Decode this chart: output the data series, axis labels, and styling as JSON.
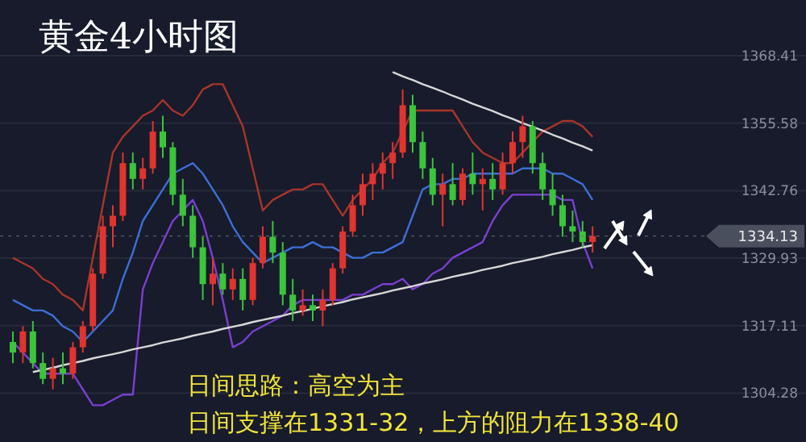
{
  "chart_data": {
    "type": "candlestick",
    "title": "黄金4小时图",
    "annotations": [
      "日间思路：高空为主",
      "日间支撑在1331-32，上方的阻力在1338-40"
    ],
    "categories": [
      null,
      null,
      null,
      null,
      null,
      null,
      null,
      null,
      null,
      null,
      null,
      null,
      null,
      null,
      null,
      null,
      null,
      null,
      null,
      null,
      null,
      null,
      null,
      null,
      null,
      null,
      null,
      null,
      null,
      null,
      null,
      null,
      null,
      null,
      null,
      null,
      null,
      null,
      null,
      null,
      null,
      null,
      null,
      null,
      null,
      null,
      null,
      null,
      null,
      null,
      null,
      null,
      null,
      null,
      null,
      null,
      null,
      null,
      null
    ],
    "ohlc": [
      [
        1314,
        1316,
        1310,
        1312
      ],
      [
        1312,
        1317,
        1310,
        1316
      ],
      [
        1316,
        1318,
        1309,
        1310
      ],
      [
        1310,
        1312,
        1306,
        1307
      ],
      [
        1307,
        1311,
        1305,
        1309
      ],
      [
        1309,
        1312,
        1306,
        1308
      ],
      [
        1308,
        1314,
        1307,
        1313
      ],
      [
        1313,
        1318,
        1312,
        1317
      ],
      [
        1317,
        1328,
        1316,
        1327
      ],
      [
        1327,
        1338,
        1326,
        1336
      ],
      [
        1336,
        1340,
        1332,
        1338
      ],
      [
        1338,
        1350,
        1337,
        1348
      ],
      [
        1348,
        1350,
        1343,
        1345
      ],
      [
        1345,
        1349,
        1343,
        1347
      ],
      [
        1347,
        1356,
        1346,
        1354
      ],
      [
        1354,
        1357,
        1349,
        1351
      ],
      [
        1351,
        1352,
        1340,
        1342
      ],
      [
        1342,
        1345,
        1336,
        1338
      ],
      [
        1338,
        1340,
        1330,
        1332
      ],
      [
        1332,
        1334,
        1322,
        1325
      ],
      [
        1325,
        1330,
        1321,
        1327
      ],
      [
        1327,
        1329,
        1323,
        1324
      ],
      [
        1324,
        1328,
        1322,
        1326
      ],
      [
        1326,
        1328,
        1320,
        1322
      ],
      [
        1322,
        1330,
        1321,
        1329
      ],
      [
        1329,
        1336,
        1328,
        1334
      ],
      [
        1334,
        1337,
        1329,
        1331
      ],
      [
        1331,
        1333,
        1321,
        1323
      ],
      [
        1323,
        1326,
        1318,
        1320
      ],
      [
        1320,
        1324,
        1319,
        1321
      ],
      [
        1321,
        1323,
        1318,
        1320
      ],
      [
        1320,
        1324,
        1317,
        1322
      ],
      [
        1322,
        1329,
        1321,
        1328
      ],
      [
        1328,
        1336,
        1327,
        1335
      ],
      [
        1335,
        1342,
        1334,
        1340
      ],
      [
        1340,
        1346,
        1338,
        1344
      ],
      [
        1344,
        1348,
        1341,
        1346
      ],
      [
        1346,
        1350,
        1343,
        1348
      ],
      [
        1348,
        1352,
        1345,
        1350
      ],
      [
        1350,
        1362,
        1349,
        1359
      ],
      [
        1359,
        1361,
        1350,
        1352
      ],
      [
        1352,
        1354,
        1345,
        1347
      ],
      [
        1347,
        1349,
        1340,
        1342
      ],
      [
        1342,
        1346,
        1336,
        1344
      ],
      [
        1344,
        1348,
        1340,
        1341
      ],
      [
        1341,
        1347,
        1340,
        1346
      ],
      [
        1346,
        1350,
        1342,
        1344
      ],
      [
        1344,
        1347,
        1339,
        1345
      ],
      [
        1345,
        1348,
        1341,
        1343
      ],
      [
        1343,
        1350,
        1342,
        1348
      ],
      [
        1348,
        1354,
        1346,
        1352
      ],
      [
        1352,
        1357,
        1349,
        1355
      ],
      [
        1355,
        1356,
        1346,
        1348
      ],
      [
        1348,
        1350,
        1341,
        1343
      ],
      [
        1343,
        1346,
        1338,
        1340
      ],
      [
        1340,
        1342,
        1334,
        1336
      ],
      [
        1336,
        1339,
        1333,
        1335
      ],
      [
        1335,
        1337,
        1332,
        1333
      ],
      [
        1333,
        1336,
        1331,
        1334.13
      ]
    ],
    "colors": [
      "#3cc43c",
      "#e0342f",
      "#3cc43c",
      "#3cc43c",
      "#e0342f",
      "#3cc43c",
      "#e0342f",
      "#e0342f",
      "#e0342f",
      "#e0342f",
      "#e0342f",
      "#e0342f",
      "#3cc43c",
      "#e0342f",
      "#e0342f",
      "#3cc43c",
      "#3cc43c",
      "#3cc43c",
      "#3cc43c",
      "#3cc43c",
      "#e0342f",
      "#3cc43c",
      "#e0342f",
      "#3cc43c",
      "#e0342f",
      "#e0342f",
      "#3cc43c",
      "#3cc43c",
      "#3cc43c",
      "#e0342f",
      "#3cc43c",
      "#e0342f",
      "#e0342f",
      "#e0342f",
      "#e0342f",
      "#e0342f",
      "#e0342f",
      "#e0342f",
      "#e0342f",
      "#e0342f",
      "#3cc43c",
      "#3cc43c",
      "#3cc43c",
      "#e0342f",
      "#3cc43c",
      "#e0342f",
      "#3cc43c",
      "#e0342f",
      "#3cc43c",
      "#e0342f",
      "#e0342f",
      "#e0342f",
      "#3cc43c",
      "#3cc43c",
      "#3cc43c",
      "#3cc43c",
      "#3cc43c",
      "#3cc43c",
      "#e0342f"
    ],
    "series": [
      {
        "type": "line",
        "color": "#a8352b",
        "values": [
          1330,
          1329,
          1328,
          1326,
          1325,
          1323,
          1322,
          1320,
          1330,
          1340,
          1350,
          1353,
          1355,
          1357,
          1358,
          1360,
          1358,
          1357,
          1359,
          1362,
          1363,
          1363,
          1359,
          1355,
          1347,
          1339,
          1341,
          1342,
          1343,
          1343,
          1344,
          1344,
          1341,
          1338,
          1341,
          1343,
          1345,
          1348,
          1350,
          1354,
          1358,
          1358,
          1358,
          1358,
          1358,
          1355,
          1352,
          1350,
          1349,
          1348,
          1348,
          1350,
          1352,
          1354,
          1355,
          1356,
          1356,
          1355,
          1353
        ]
      },
      {
        "type": "line",
        "color": "#3d6fd6",
        "values": [
          1322,
          1321,
          1320,
          1320,
          1319,
          1317,
          1316,
          1314,
          1316,
          1318,
          1320,
          1326,
          1331,
          1337,
          1340,
          1343,
          1346,
          1347,
          1348,
          1346,
          1343,
          1340,
          1336,
          1333,
          1331,
          1329,
          1330,
          1331,
          1332,
          1332,
          1333,
          1332,
          1332,
          1331,
          1330,
          1330,
          1331,
          1331,
          1332,
          1333,
          1338,
          1343,
          1344,
          1344,
          1345,
          1345,
          1346,
          1346,
          1346,
          1346,
          1346,
          1347,
          1347,
          1347,
          1346,
          1346,
          1345,
          1344,
          1341
        ]
      },
      {
        "type": "line",
        "color": "#7b3fd0",
        "values": [
          1314,
          1312,
          1310,
          1308,
          1308,
          1308,
          1308,
          1305,
          1302,
          1302,
          1303,
          1304,
          1304,
          1324,
          1329,
          1333,
          1337,
          1339,
          1341,
          1337,
          1330,
          1322,
          1313,
          1314,
          1316,
          1317,
          1318,
          1319,
          1321,
          1322,
          1322,
          1322,
          1322,
          1322,
          1323,
          1323,
          1324,
          1325,
          1325,
          1326,
          1324,
          1325,
          1327,
          1328,
          1330,
          1331,
          1332,
          1333,
          1337,
          1340,
          1342,
          1342,
          1342,
          1342,
          1342,
          1341,
          1341,
          1333,
          1328
        ]
      },
      {
        "type": "line",
        "color": "#d8d8d8",
        "values": [
          null,
          null,
          1308.3,
          1308.7,
          1309.1,
          1309.6,
          1310.0,
          1310.4,
          1310.9,
          1311.3,
          1311.7,
          1312.1,
          1312.6,
          1313.0,
          1313.4,
          1313.9,
          1314.3,
          1314.7,
          1315.2,
          1315.6,
          1316.0,
          1316.5,
          1316.9,
          1317.3,
          1317.8,
          1318.2,
          1318.6,
          1319.0,
          1319.5,
          1319.9,
          1320.3,
          1320.8,
          1321.2,
          1321.6,
          1322.1,
          1322.5,
          1322.9,
          1323.3,
          1323.8,
          1324.2,
          1324.6,
          1325.1,
          1325.5,
          1325.9,
          1326.4,
          1326.8,
          1327.2,
          1327.7,
          1328.1,
          1328.5,
          1329.0,
          1329.4,
          1329.8,
          1330.2,
          1330.7,
          1331.1,
          1331.5,
          1332.0,
          1332.4
        ]
      },
      {
        "type": "line",
        "color": "#d8d8d8",
        "values": [
          null,
          null,
          null,
          null,
          null,
          null,
          null,
          null,
          null,
          null,
          null,
          null,
          null,
          null,
          null,
          null,
          null,
          null,
          null,
          null,
          null,
          null,
          null,
          null,
          null,
          null,
          null,
          null,
          null,
          null,
          null,
          null,
          null,
          null,
          null,
          null,
          null,
          null,
          1365.3,
          1364.5,
          1363.8,
          1363.0,
          1362.3,
          1361.6,
          1360.8,
          1360.1,
          1359.3,
          1358.6,
          1357.9,
          1357.1,
          1356.4,
          1355.6,
          1354.9,
          1354.2,
          1353.4,
          1352.7,
          1351.9,
          1351.2,
          1350.4
        ]
      }
    ],
    "ylim": [
      1295,
      1379
    ],
    "yticks": [
      1368.41,
      1355.58,
      1342.76,
      1329.93,
      1317.11,
      1304.28
    ],
    "tick_labels": "y",
    "grid": "y",
    "ref_lines": [
      {
        "axis": "y",
        "value": 1334.13,
        "label": "1334.13"
      }
    ]
  }
}
